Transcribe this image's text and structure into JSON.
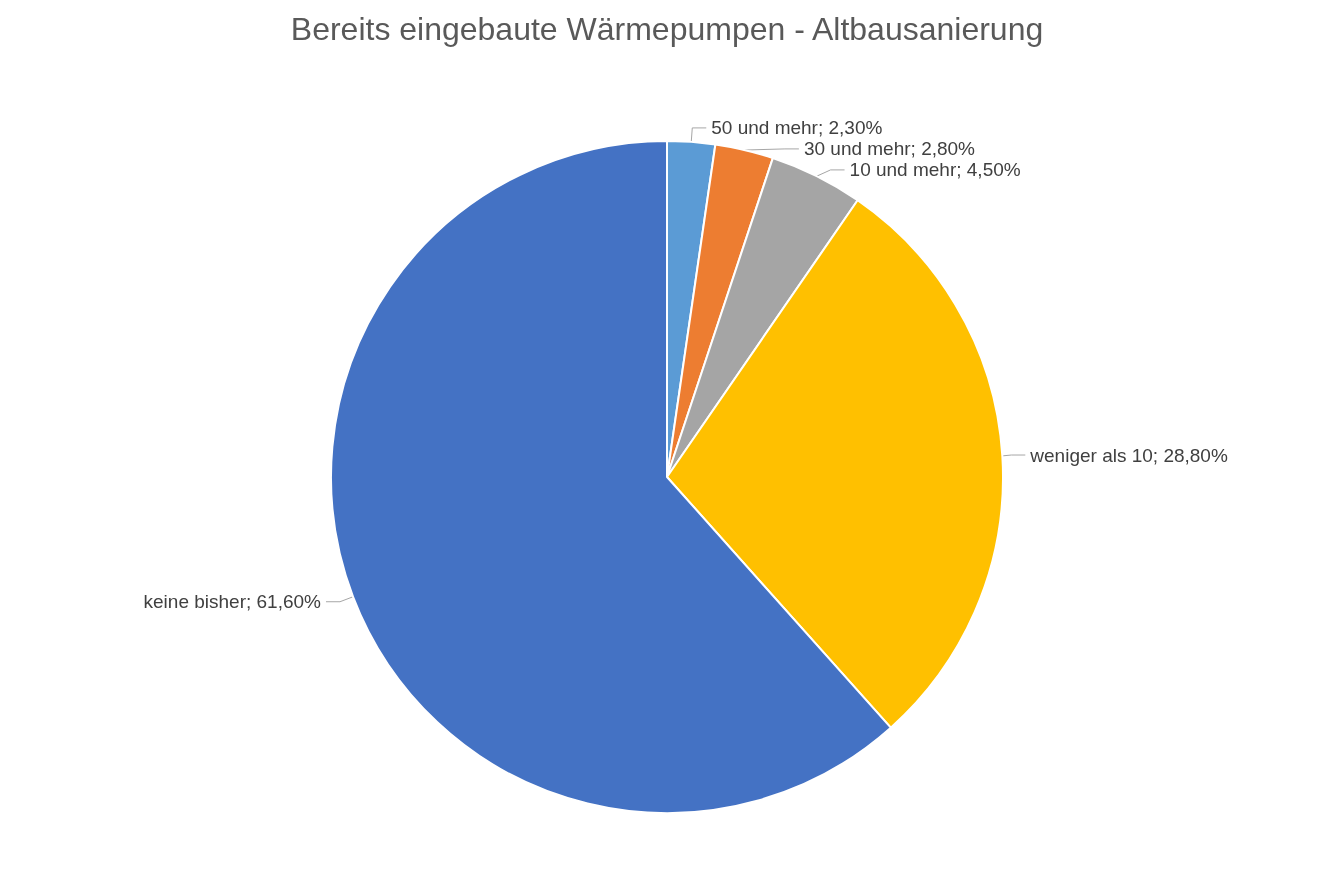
{
  "chart_data": {
    "type": "pie",
    "title": "Bereits eingebaute Wärmepumpen - Altbausanierung",
    "categories": [
      "50 und mehr",
      "30 und mehr",
      "10 und mehr",
      "weniger als 10",
      "keine bisher"
    ],
    "values": [
      2.3,
      2.8,
      4.5,
      28.8,
      61.6
    ],
    "colors": [
      "#5b9bd5",
      "#ed7d31",
      "#a5a5a5",
      "#ffc000",
      "#4472c4"
    ],
    "value_labels": [
      "2,30%",
      "2,80%",
      "4,50%",
      "28,80%",
      "61,60%"
    ],
    "legend": false
  }
}
